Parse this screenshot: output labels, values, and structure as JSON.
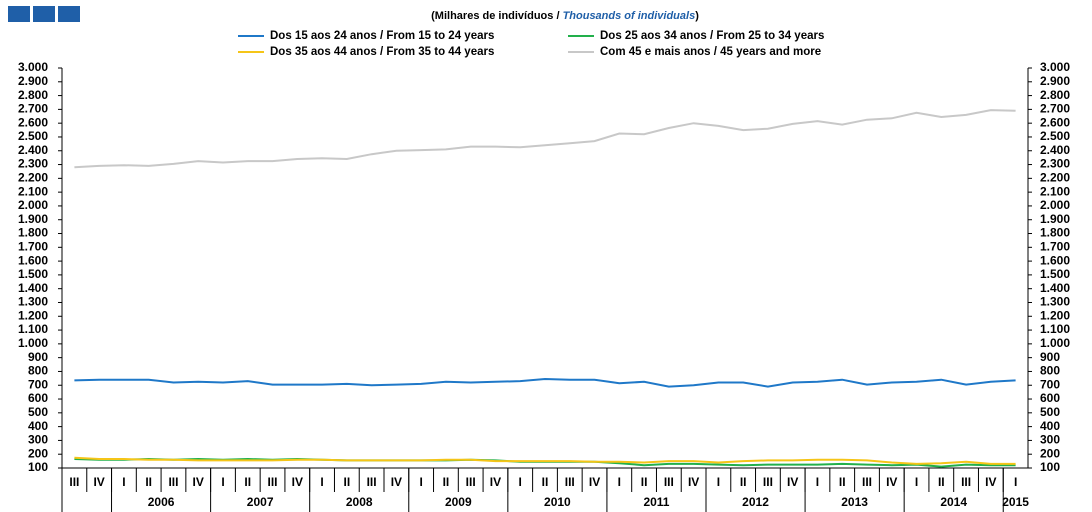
{
  "chart_data": {
    "type": "line",
    "subtitle": [
      "(Milhares de indivíduos  / ",
      "Thousands of individuals",
      ")"
    ],
    "categories": [
      "III",
      "IV",
      "I",
      "II",
      "III",
      "IV",
      "I",
      "II",
      "III",
      "IV",
      "I",
      "II",
      "III",
      "IV",
      "I",
      "II",
      "III",
      "IV",
      "I",
      "II",
      "III",
      "IV",
      "I",
      "II",
      "III",
      "IV",
      "I",
      "II",
      "III",
      "IV",
      "I",
      "II",
      "III",
      "IV",
      "I",
      "II",
      "III",
      "IV",
      "I"
    ],
    "years": [
      "2006",
      "2007",
      "2008",
      "2009",
      "2010",
      "2011",
      "2012",
      "2013",
      "2014",
      "2015"
    ],
    "series": [
      {
        "name": "Dos 15 aos 24 anos / From 15 to 24 years",
        "color": "#1f78c8",
        "values": [
          735,
          740,
          740,
          740,
          720,
          725,
          720,
          730,
          705,
          705,
          705,
          710,
          700,
          705,
          710,
          725,
          720,
          725,
          730,
          745,
          740,
          740,
          715,
          725,
          690,
          700,
          720,
          720,
          690,
          720,
          725,
          740,
          705,
          720,
          725,
          740,
          705,
          725,
          735
        ]
      },
      {
        "name": "Dos 25 aos 34 anos / From 25 to 34 years",
        "color": "#22b04b",
        "values": [
          165,
          160,
          160,
          165,
          160,
          165,
          160,
          165,
          160,
          165,
          160,
          155,
          155,
          155,
          155,
          155,
          160,
          155,
          145,
          145,
          145,
          145,
          135,
          120,
          130,
          130,
          125,
          120,
          125,
          125,
          125,
          130,
          125,
          120,
          125,
          110,
          125,
          120,
          120
        ]
      },
      {
        "name": "Dos 35 aos 44 anos / From 35 to 44 years",
        "color": "#f5c518",
        "values": [
          175,
          165,
          165,
          160,
          160,
          155,
          155,
          155,
          155,
          160,
          160,
          155,
          155,
          155,
          155,
          160,
          160,
          150,
          150,
          150,
          150,
          145,
          145,
          140,
          150,
          150,
          140,
          150,
          155,
          155,
          160,
          160,
          155,
          140,
          130,
          135,
          145,
          130,
          130
        ]
      },
      {
        "name": "Com 45 e mais anos / 45 years and more",
        "color": "#c8c8c8",
        "values": [
          2280,
          2290,
          2295,
          2290,
          2305,
          2325,
          2315,
          2325,
          2325,
          2340,
          2345,
          2340,
          2375,
          2400,
          2405,
          2410,
          2430,
          2430,
          2425,
          2440,
          2455,
          2470,
          2525,
          2520,
          2565,
          2600,
          2580,
          2550,
          2560,
          2595,
          2615,
          2590,
          2625,
          2635,
          2675,
          2645,
          2660,
          2695,
          2690
        ]
      }
    ],
    "ylim": [
      100,
      3000
    ],
    "yticks": [
      100,
      200,
      300,
      400,
      500,
      600,
      700,
      800,
      900,
      {
        "value": 1000,
        "label": "1.000"
      },
      {
        "value": 1100,
        "label": "1.100"
      },
      {
        "value": 1200,
        "label": "1.200"
      },
      {
        "value": 1300,
        "label": "1.300"
      },
      {
        "value": 1400,
        "label": "1.400"
      },
      {
        "value": 1500,
        "label": "1.500"
      },
      {
        "value": 1600,
        "label": "1.600"
      },
      {
        "value": 1700,
        "label": "1.700"
      },
      {
        "value": 1800,
        "label": "1.800"
      },
      {
        "value": 1900,
        "label": "1.900"
      },
      {
        "value": 2000,
        "label": "2.000"
      },
      {
        "value": 2100,
        "label": "2.100"
      },
      {
        "value": 2200,
        "label": "2.200"
      },
      {
        "value": 2300,
        "label": "2.300"
      },
      {
        "value": 2400,
        "label": "2.400"
      },
      {
        "value": 2500,
        "label": "2.500"
      },
      {
        "value": 2600,
        "label": "2.600"
      },
      {
        "value": 2700,
        "label": "2.700"
      },
      {
        "value": 2800,
        "label": "2.800"
      },
      {
        "value": 2900,
        "label": "2.900"
      },
      {
        "value": 3000,
        "label": "3.000"
      }
    ],
    "grid": false
  }
}
